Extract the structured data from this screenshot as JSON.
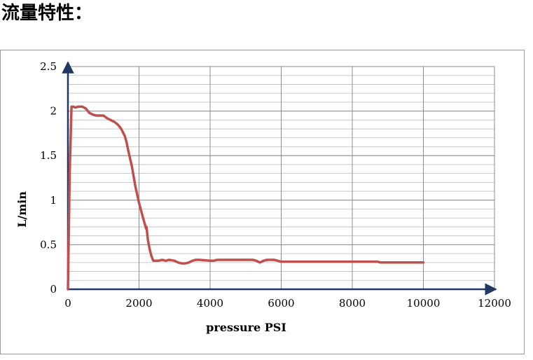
{
  "heading": "流量特性：",
  "chart_data": {
    "type": "line",
    "title": "",
    "xlabel": "pressure PSI",
    "ylabel": "L/min",
    "xlim": [
      0,
      12000
    ],
    "ylim": [
      0,
      2.5
    ],
    "xticks": [
      0,
      2000,
      4000,
      6000,
      8000,
      10000,
      12000
    ],
    "xtick_labels": [
      "0",
      "2000",
      "4000",
      "6000",
      "8000",
      "10000",
      "12000"
    ],
    "yticks": [
      0,
      0.5,
      1,
      1.5,
      2,
      2.5
    ],
    "ytick_labels": [
      "0",
      "0.5",
      "1",
      "1.5",
      "2",
      "2.5"
    ],
    "grid": true,
    "legend": "none",
    "series_color": "#c0504d",
    "series": [
      {
        "x": [
          0,
          50,
          100,
          150,
          200,
          300,
          400,
          500,
          600,
          700,
          800,
          900,
          1000,
          1100,
          1200,
          1300,
          1400,
          1500,
          1600,
          1650,
          1700,
          1800,
          1900,
          2000,
          2100,
          2200,
          2210,
          2250,
          2300,
          2350,
          2400,
          2450,
          2550,
          2650,
          2750,
          2850,
          3000,
          3100,
          3200,
          3300,
          3400,
          3500,
          3600,
          3700,
          4000,
          4100,
          4200,
          4400,
          5000,
          5200,
          5300,
          5400,
          5500,
          5600,
          5800,
          5900,
          6000,
          6100,
          7000,
          8000,
          8500,
          8700,
          8800,
          9000,
          10000
        ],
        "y": [
          0,
          1.3,
          2.05,
          2.05,
          2.04,
          2.05,
          2.05,
          2.03,
          1.98,
          1.96,
          1.95,
          1.95,
          1.95,
          1.92,
          1.9,
          1.88,
          1.85,
          1.8,
          1.72,
          1.65,
          1.55,
          1.38,
          1.15,
          0.97,
          0.82,
          0.68,
          0.7,
          0.55,
          0.45,
          0.37,
          0.32,
          0.32,
          0.32,
          0.33,
          0.32,
          0.33,
          0.32,
          0.3,
          0.29,
          0.29,
          0.3,
          0.32,
          0.33,
          0.33,
          0.32,
          0.32,
          0.33,
          0.33,
          0.33,
          0.33,
          0.32,
          0.3,
          0.32,
          0.33,
          0.33,
          0.32,
          0.31,
          0.31,
          0.31,
          0.31,
          0.31,
          0.31,
          0.3,
          0.3,
          0.3
        ]
      }
    ]
  }
}
